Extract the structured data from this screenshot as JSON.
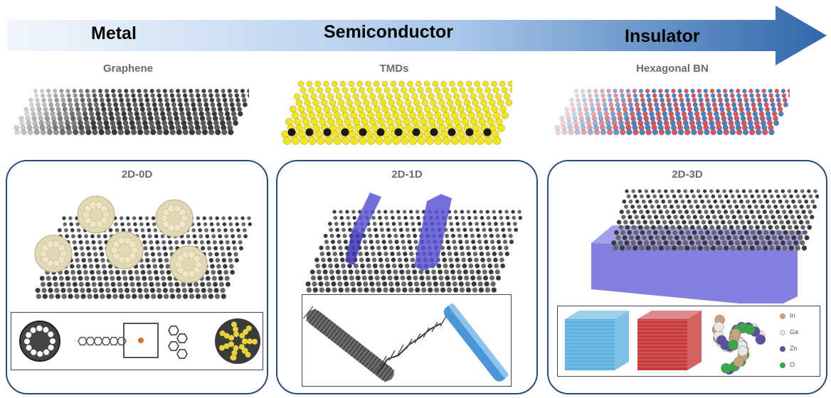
{
  "arrow": {
    "labels": [
      "Metal",
      "Semiconductor",
      "Insulator"
    ],
    "colors": {
      "start": "#e9f1fb",
      "end": "#2f66a8"
    }
  },
  "materials": [
    {
      "label": "Graphene",
      "colors": [
        "#3a3a3a",
        "#cfcfcf"
      ]
    },
    {
      "label": "TMDs",
      "colors": [
        "#f2e61a",
        "#1a1a1a"
      ]
    },
    {
      "label": "Hexagonal BN",
      "colors": [
        "#4d7fc2",
        "#d7555d"
      ]
    }
  ],
  "panels": [
    {
      "title": "2D-0D"
    },
    {
      "title": "2D-1D"
    },
    {
      "title": "2D-3D"
    }
  ],
  "legend": {
    "items": [
      {
        "label": "In",
        "color": "#c8a27b"
      },
      {
        "label": "Ga",
        "color": "#e8e8e8"
      },
      {
        "label": "Zn",
        "color": "#5b4fa0"
      },
      {
        "label": "O",
        "color": "#3aa64a"
      }
    ]
  },
  "colors": {
    "panel_border": "#2a4b7c",
    "substrate": "#5a55d6",
    "gold_cluster": "#e3d8b4",
    "red_cube": "#c83b3b",
    "blue_cube": "#5fb2e0"
  }
}
